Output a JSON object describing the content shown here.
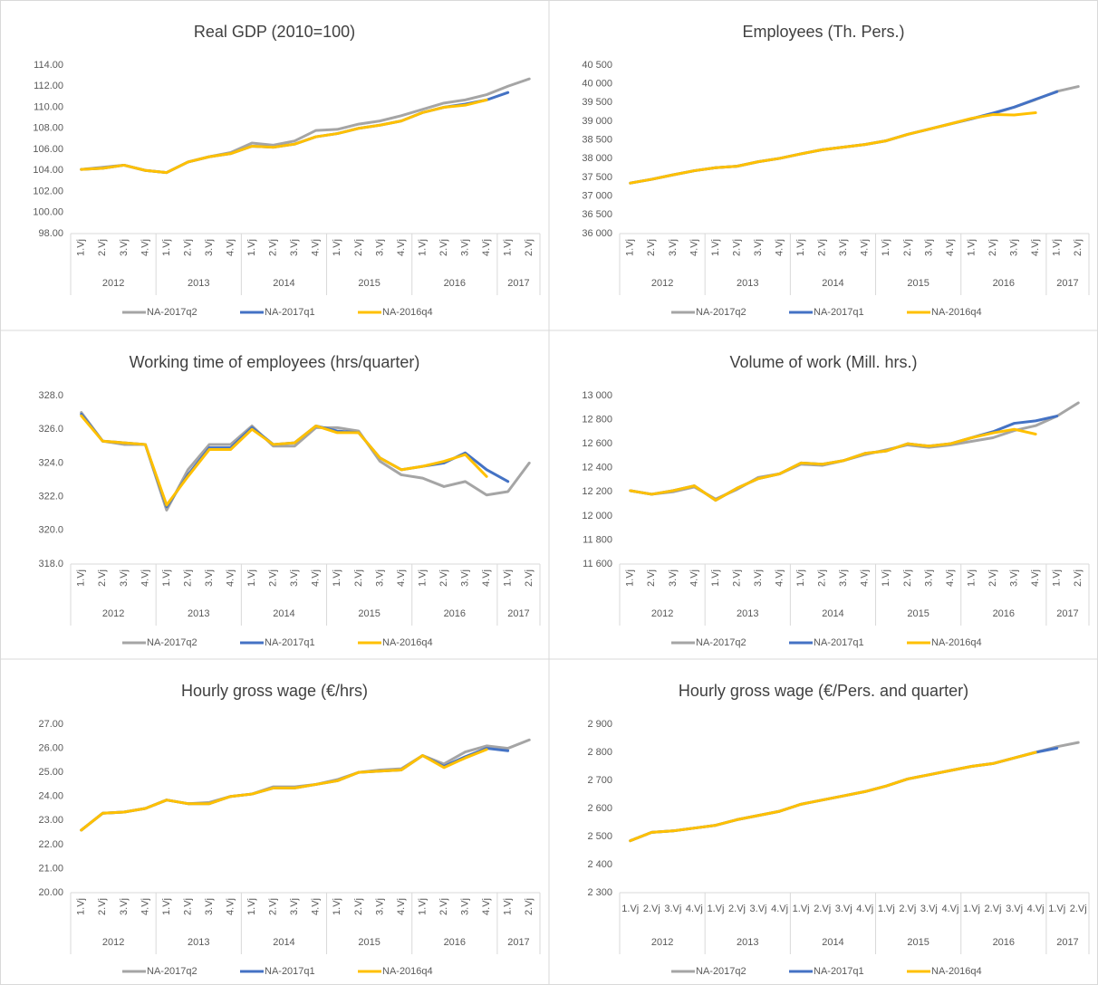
{
  "chart_data": [
    {
      "type": "line",
      "title": "Real GDP (2010=100)",
      "categories": [
        "1.Vj",
        "2.Vj",
        "3.Vj",
        "4.Vj",
        "1.Vj",
        "2.Vj",
        "3.Vj",
        "4.Vj",
        "1.Vj",
        "2.Vj",
        "3.Vj",
        "4.Vj",
        "1.Vj",
        "2.Vj",
        "3.Vj",
        "4.Vj",
        "1.Vj",
        "2.Vj",
        "3.Vj",
        "4.Vj",
        "1.Vj",
        "2.Vj"
      ],
      "category_groups": [
        {
          "name": "2012",
          "count": 4
        },
        {
          "name": "2013",
          "count": 4
        },
        {
          "name": "2014",
          "count": 4
        },
        {
          "name": "2015",
          "count": 4
        },
        {
          "name": "2016",
          "count": 4
        },
        {
          "name": "2017",
          "count": 2
        }
      ],
      "x_labels_rotated": true,
      "ylim": [
        98,
        114
      ],
      "yticks": [
        {
          "value": 98,
          "label": "98.00"
        },
        {
          "value": 100,
          "label": "100.00"
        },
        {
          "value": 102,
          "label": "102.00"
        },
        {
          "value": 104,
          "label": "104.00"
        },
        {
          "value": 106,
          "label": "106.00"
        },
        {
          "value": 108,
          "label": "108.00"
        },
        {
          "value": 110,
          "label": "110.00"
        },
        {
          "value": 112,
          "label": "112.00"
        },
        {
          "value": 114,
          "label": "114.00"
        }
      ],
      "series": [
        {
          "name": "NA-2017q2",
          "color": "#a5a5a5",
          "values": [
            104.1,
            104.3,
            104.5,
            104.0,
            103.8,
            104.8,
            105.3,
            105.7,
            106.6,
            106.4,
            106.8,
            107.8,
            107.9,
            108.4,
            108.7,
            109.2,
            109.8,
            110.4,
            110.7,
            111.2,
            112.0,
            112.7
          ]
        },
        {
          "name": "NA-2017q1",
          "color": "#4472c4",
          "values": [
            104.1,
            104.2,
            104.5,
            104.0,
            103.8,
            104.8,
            105.3,
            105.6,
            106.3,
            106.2,
            106.5,
            107.2,
            107.5,
            108.0,
            108.3,
            108.7,
            109.5,
            110.0,
            110.3,
            110.7,
            111.4,
            null
          ]
        },
        {
          "name": "NA-2016q4",
          "color": "#ffc000",
          "values": [
            104.1,
            104.2,
            104.5,
            104.0,
            103.8,
            104.8,
            105.3,
            105.6,
            106.3,
            106.2,
            106.5,
            107.2,
            107.5,
            108.0,
            108.3,
            108.7,
            109.5,
            110.0,
            110.2,
            110.7,
            null,
            null
          ]
        }
      ]
    },
    {
      "type": "line",
      "title": "Employees (Th. Pers.)",
      "categories": [
        "1.Vj",
        "2.Vj",
        "3.Vj",
        "4.Vj",
        "1.Vj",
        "2.Vj",
        "3.Vj",
        "4.Vj",
        "1.Vj",
        "2.Vj",
        "3.Vj",
        "4.Vj",
        "1.Vj",
        "2.Vj",
        "3.Vj",
        "4.Vj",
        "1.Vj",
        "2.Vj",
        "3.Vj",
        "4.Vj",
        "1.Vj",
        "2.Vj"
      ],
      "category_groups": [
        {
          "name": "2012",
          "count": 4
        },
        {
          "name": "2013",
          "count": 4
        },
        {
          "name": "2014",
          "count": 4
        },
        {
          "name": "2015",
          "count": 4
        },
        {
          "name": "2016",
          "count": 4
        },
        {
          "name": "2017",
          "count": 2
        }
      ],
      "x_labels_rotated": true,
      "ylim": [
        36000,
        40500
      ],
      "yticks": [
        {
          "value": 36000,
          "label": "36 000"
        },
        {
          "value": 36500,
          "label": "36 500"
        },
        {
          "value": 37000,
          "label": "37 000"
        },
        {
          "value": 37500,
          "label": "37 500"
        },
        {
          "value": 38000,
          "label": "38 000"
        },
        {
          "value": 38500,
          "label": "38 500"
        },
        {
          "value": 39000,
          "label": "39 000"
        },
        {
          "value": 39500,
          "label": "39 500"
        },
        {
          "value": 40000,
          "label": "40 000"
        },
        {
          "value": 40500,
          "label": "40 500"
        }
      ],
      "series": [
        {
          "name": "NA-2017q2",
          "color": "#a5a5a5",
          "values": [
            37350,
            37450,
            37570,
            37680,
            37760,
            37800,
            37920,
            38010,
            38130,
            38240,
            38310,
            38380,
            38480,
            38650,
            38790,
            38930,
            39070,
            39200,
            39380,
            39580,
            39800,
            39930
          ]
        },
        {
          "name": "NA-2017q1",
          "color": "#4472c4",
          "values": [
            37350,
            37450,
            37570,
            37680,
            37760,
            37800,
            37920,
            38010,
            38130,
            38240,
            38310,
            38380,
            38480,
            38650,
            38790,
            38930,
            39070,
            39220,
            39380,
            39590,
            39790,
            null
          ]
        },
        {
          "name": "NA-2016q4",
          "color": "#ffc000",
          "values": [
            37350,
            37450,
            37570,
            37680,
            37760,
            37800,
            37920,
            38010,
            38130,
            38240,
            38310,
            38380,
            38480,
            38650,
            38790,
            38930,
            39080,
            39180,
            39170,
            39230,
            null,
            null
          ]
        }
      ]
    },
    {
      "type": "line",
      "title": "Working time of employees (hrs/quarter)",
      "categories": [
        "1.Vj",
        "2.Vj",
        "3.Vj",
        "4.Vj",
        "1.Vj",
        "2.Vj",
        "3.Vj",
        "4.Vj",
        "1.Vj",
        "2.Vj",
        "3.Vj",
        "4.Vj",
        "1.Vj",
        "2.Vj",
        "3.Vj",
        "4.Vj",
        "1.Vj",
        "2.Vj",
        "3.Vj",
        "4.Vj",
        "1.Vj",
        "2.Vj"
      ],
      "category_groups": [
        {
          "name": "2012",
          "count": 4
        },
        {
          "name": "2013",
          "count": 4
        },
        {
          "name": "2014",
          "count": 4
        },
        {
          "name": "2015",
          "count": 4
        },
        {
          "name": "2016",
          "count": 4
        },
        {
          "name": "2017",
          "count": 2
        }
      ],
      "x_labels_rotated": true,
      "ylim": [
        318,
        328
      ],
      "yticks": [
        {
          "value": 318,
          "label": "318.0"
        },
        {
          "value": 320,
          "label": "320.0"
        },
        {
          "value": 322,
          "label": "322.0"
        },
        {
          "value": 324,
          "label": "324.0"
        },
        {
          "value": 326,
          "label": "326.0"
        },
        {
          "value": 328,
          "label": "328.0"
        }
      ],
      "series": [
        {
          "name": "NA-2017q2",
          "color": "#a5a5a5",
          "values": [
            327.0,
            325.3,
            325.1,
            325.1,
            321.2,
            323.6,
            325.1,
            325.1,
            326.2,
            325.0,
            325.0,
            326.1,
            326.1,
            325.9,
            324.1,
            323.3,
            323.1,
            322.6,
            322.9,
            322.1,
            322.3,
            324.0
          ]
        },
        {
          "name": "NA-2017q1",
          "color": "#4472c4",
          "values": [
            326.9,
            325.3,
            325.2,
            325.1,
            321.4,
            323.3,
            324.9,
            324.9,
            326.1,
            325.1,
            325.2,
            326.2,
            325.9,
            325.8,
            324.3,
            323.6,
            323.8,
            324.0,
            324.6,
            323.6,
            322.9,
            null
          ]
        },
        {
          "name": "NA-2016q4",
          "color": "#ffc000",
          "values": [
            326.8,
            325.3,
            325.2,
            325.1,
            321.5,
            323.2,
            324.8,
            324.8,
            326.0,
            325.1,
            325.2,
            326.2,
            325.8,
            325.8,
            324.3,
            323.6,
            323.8,
            324.1,
            324.5,
            323.2,
            null,
            null
          ]
        }
      ]
    },
    {
      "type": "line",
      "title": "Volume of work (Mill. hrs.)",
      "categories": [
        "1.Vj",
        "2.Vj",
        "3.Vj",
        "4.Vj",
        "1.Vj",
        "2.Vj",
        "3.Vj",
        "4.Vj",
        "1.Vj",
        "2.Vj",
        "3.Vj",
        "4.Vj",
        "1.Vj",
        "2.Vj",
        "3.Vj",
        "4.Vj",
        "1.Vj",
        "2.Vj",
        "3.Vj",
        "4.Vj",
        "1.Vj",
        "2.Vj"
      ],
      "category_groups": [
        {
          "name": "2012",
          "count": 4
        },
        {
          "name": "2013",
          "count": 4
        },
        {
          "name": "2014",
          "count": 4
        },
        {
          "name": "2015",
          "count": 4
        },
        {
          "name": "2016",
          "count": 4
        },
        {
          "name": "2017",
          "count": 2
        }
      ],
      "x_labels_rotated": true,
      "ylim": [
        11600,
        13000
      ],
      "yticks": [
        {
          "value": 11600,
          "label": "11 600"
        },
        {
          "value": 11800,
          "label": "11 800"
        },
        {
          "value": 12000,
          "label": "12 000"
        },
        {
          "value": 12200,
          "label": "12 200"
        },
        {
          "value": 12400,
          "label": "12 400"
        },
        {
          "value": 12600,
          "label": "12 600"
        },
        {
          "value": 12800,
          "label": "12 800"
        },
        {
          "value": 13000,
          "label": "13 000"
        }
      ],
      "series": [
        {
          "name": "NA-2017q2",
          "color": "#a5a5a5",
          "values": [
            12210,
            12180,
            12200,
            12240,
            12140,
            12220,
            12320,
            12350,
            12430,
            12420,
            12460,
            12510,
            12550,
            12590,
            12570,
            12590,
            12620,
            12650,
            12710,
            12750,
            12830,
            12940
          ]
        },
        {
          "name": "NA-2017q1",
          "color": "#4472c4",
          "values": [
            12210,
            12180,
            12210,
            12250,
            12130,
            12230,
            12310,
            12350,
            12440,
            12430,
            12460,
            12520,
            12540,
            12600,
            12580,
            12600,
            12650,
            12700,
            12770,
            12790,
            12830,
            null
          ]
        },
        {
          "name": "NA-2016q4",
          "color": "#ffc000",
          "values": [
            12210,
            12180,
            12210,
            12250,
            12130,
            12230,
            12310,
            12350,
            12440,
            12430,
            12460,
            12520,
            12540,
            12600,
            12580,
            12600,
            12650,
            12690,
            12720,
            12680,
            null,
            null
          ]
        }
      ]
    },
    {
      "type": "line",
      "title": "Hourly gross wage (€/hrs)",
      "categories": [
        "1.Vj",
        "2.Vj",
        "3.Vj",
        "4.Vj",
        "1.Vj",
        "2.Vj",
        "3.Vj",
        "4.Vj",
        "1.Vj",
        "2.Vj",
        "3.Vj",
        "4.Vj",
        "1.Vj",
        "2.Vj",
        "3.Vj",
        "4.Vj",
        "1.Vj",
        "2.Vj",
        "3.Vj",
        "4.Vj",
        "1.Vj",
        "2.Vj"
      ],
      "category_groups": [
        {
          "name": "2012",
          "count": 4
        },
        {
          "name": "2013",
          "count": 4
        },
        {
          "name": "2014",
          "count": 4
        },
        {
          "name": "2015",
          "count": 4
        },
        {
          "name": "2016",
          "count": 4
        },
        {
          "name": "2017",
          "count": 2
        }
      ],
      "x_labels_rotated": true,
      "ylim": [
        20,
        27
      ],
      "yticks": [
        {
          "value": 20,
          "label": "20.00"
        },
        {
          "value": 21,
          "label": "21.00"
        },
        {
          "value": 22,
          "label": "22.00"
        },
        {
          "value": 23,
          "label": "23.00"
        },
        {
          "value": 24,
          "label": "24.00"
        },
        {
          "value": 25,
          "label": "25.00"
        },
        {
          "value": 26,
          "label": "26.00"
        },
        {
          "value": 27,
          "label": "27.00"
        }
      ],
      "series": [
        {
          "name": "NA-2017q2",
          "color": "#a5a5a5",
          "values": [
            22.6,
            23.3,
            23.35,
            23.5,
            23.85,
            23.7,
            23.75,
            24.0,
            24.1,
            24.4,
            24.4,
            24.5,
            24.7,
            25.0,
            25.1,
            25.15,
            25.7,
            25.35,
            25.85,
            26.1,
            26.0,
            26.35
          ]
        },
        {
          "name": "NA-2017q1",
          "color": "#4472c4",
          "values": [
            22.6,
            23.3,
            23.35,
            23.5,
            23.85,
            23.7,
            23.7,
            24.0,
            24.1,
            24.35,
            24.35,
            24.5,
            24.65,
            25.0,
            25.05,
            25.1,
            25.7,
            25.25,
            25.65,
            26.0,
            25.9,
            null
          ]
        },
        {
          "name": "NA-2016q4",
          "color": "#ffc000",
          "values": [
            22.6,
            23.3,
            23.35,
            23.5,
            23.85,
            23.7,
            23.7,
            24.0,
            24.1,
            24.35,
            24.35,
            24.5,
            24.65,
            25.0,
            25.05,
            25.1,
            25.7,
            25.2,
            25.6,
            25.95,
            null,
            null
          ]
        }
      ]
    },
    {
      "type": "line",
      "title": "Hourly gross wage (€/Pers. and quarter)",
      "categories": [
        "1.Vj",
        "2.Vj",
        "3.Vj",
        "4.Vj",
        "1.Vj",
        "2.Vj",
        "3.Vj",
        "4.Vj",
        "1.Vj",
        "2.Vj",
        "3.Vj",
        "4.Vj",
        "1.Vj",
        "2.Vj",
        "3.Vj",
        "4.Vj",
        "1.Vj",
        "2.Vj",
        "3.Vj",
        "4.Vj",
        "1.Vj",
        "2.Vj"
      ],
      "category_groups": [
        {
          "name": "2012",
          "count": 4
        },
        {
          "name": "2013",
          "count": 4
        },
        {
          "name": "2014",
          "count": 4
        },
        {
          "name": "2015",
          "count": 4
        },
        {
          "name": "2016",
          "count": 4
        },
        {
          "name": "2017",
          "count": 2
        }
      ],
      "x_labels_rotated": false,
      "ylim": [
        2300,
        2900
      ],
      "yticks": [
        {
          "value": 2300,
          "label": "2 300"
        },
        {
          "value": 2400,
          "label": "2 400"
        },
        {
          "value": 2500,
          "label": "2 500"
        },
        {
          "value": 2600,
          "label": "2 600"
        },
        {
          "value": 2700,
          "label": "2 700"
        },
        {
          "value": 2800,
          "label": "2 800"
        },
        {
          "value": 2900,
          "label": "2 900"
        }
      ],
      "series": [
        {
          "name": "NA-2017q2",
          "color": "#a5a5a5",
          "values": [
            2485,
            2515,
            2520,
            2530,
            2540,
            2560,
            2575,
            2590,
            2615,
            2630,
            2645,
            2660,
            2680,
            2705,
            2720,
            2735,
            2750,
            2760,
            2780,
            2800,
            2820,
            2835
          ]
        },
        {
          "name": "NA-2017q1",
          "color": "#4472c4",
          "values": [
            2485,
            2515,
            2520,
            2530,
            2540,
            2560,
            2575,
            2590,
            2615,
            2630,
            2645,
            2660,
            2680,
            2705,
            2720,
            2735,
            2750,
            2760,
            2780,
            2800,
            2815,
            null
          ]
        },
        {
          "name": "NA-2016q4",
          "color": "#ffc000",
          "values": [
            2485,
            2515,
            2520,
            2530,
            2540,
            2560,
            2575,
            2590,
            2615,
            2630,
            2645,
            2660,
            2680,
            2705,
            2720,
            2735,
            2750,
            2760,
            2780,
            2800,
            null,
            null
          ]
        }
      ]
    }
  ]
}
